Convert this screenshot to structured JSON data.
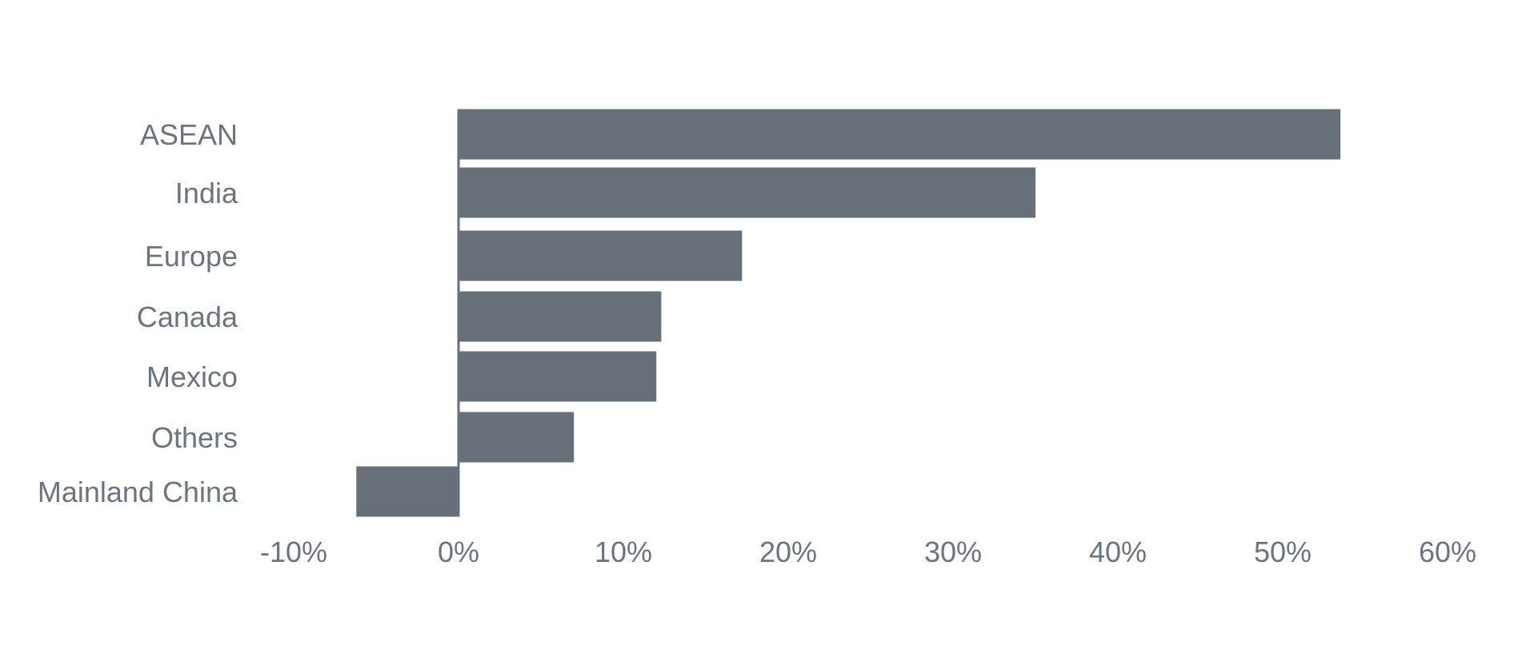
{
  "chart_data": {
    "type": "bar",
    "orientation": "horizontal",
    "categories": [
      "ASEAN",
      "India",
      "Europe",
      "Canada",
      "Mexico",
      "Others",
      "Mainland China"
    ],
    "values": [
      53.5,
      35,
      17.2,
      12.3,
      12,
      7,
      -6.2
    ],
    "xlim": [
      -10,
      60
    ],
    "xticks": [
      "-10%",
      "0%",
      "10%",
      "20%",
      "30%",
      "40%",
      "50%",
      "60%"
    ],
    "xtick_values": [
      -10,
      0,
      10,
      20,
      30,
      40,
      50,
      60
    ],
    "title": "",
    "xlabel": "",
    "ylabel": "",
    "grid": false,
    "colors": {
      "bar": "#677078",
      "axis": "#677078",
      "text": "#6b7580"
    }
  }
}
